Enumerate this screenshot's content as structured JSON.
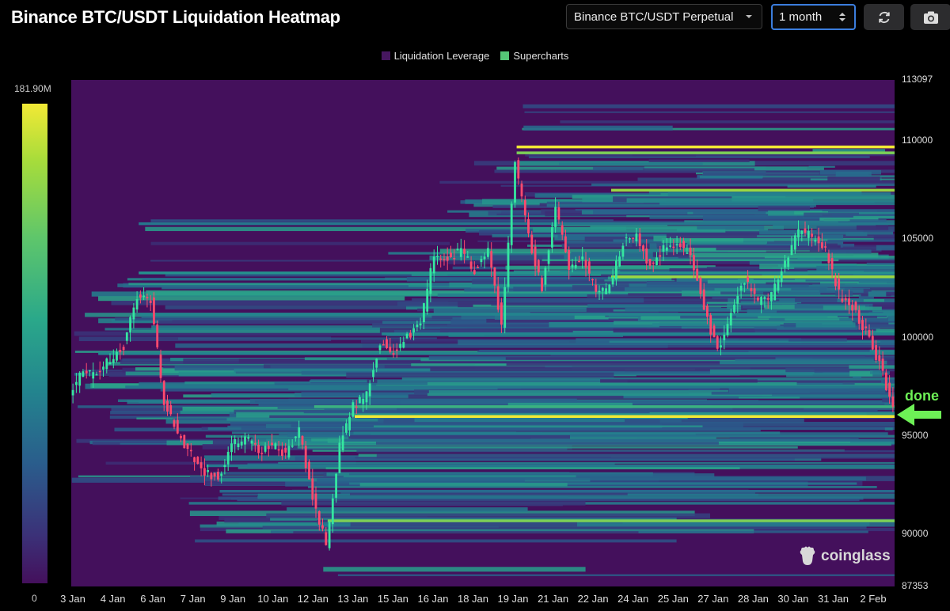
{
  "header": {
    "title": "Binance BTC/USDT Liquidation Heatmap",
    "pair_select": "Binance BTC/USDT Perpetual",
    "range_select": "1 month",
    "refresh_icon": "refresh-icon",
    "camera_icon": "camera-icon"
  },
  "legend": [
    {
      "label": "Liquidation Leverage",
      "color": "#46175f"
    },
    {
      "label": "Supercharts",
      "color": "#55c777"
    }
  ],
  "colorbar": {
    "max_label": "181.90M",
    "min_label": "0"
  },
  "annotation": {
    "text": "done",
    "color": "#6df056"
  },
  "watermark": {
    "text": "coinglass"
  },
  "chart_data": {
    "type": "heatmap",
    "title": "Binance BTC/USDT Liquidation Heatmap",
    "ylim": [
      87353,
      113097
    ],
    "yticks": [
      "113097",
      "110000",
      "105000",
      "100000",
      "95000",
      "90000",
      "87353"
    ],
    "xticks": [
      "3 Jan",
      "4 Jan",
      "6 Jan",
      "7 Jan",
      "9 Jan",
      "10 Jan",
      "12 Jan",
      "13 Jan",
      "15 Jan",
      "16 Jan",
      "18 Jan",
      "19 Jan",
      "21 Jan",
      "22 Jan",
      "24 Jan",
      "25 Jan",
      "27 Jan",
      "28 Jan",
      "30 Jan",
      "31 Jan",
      "2 Feb"
    ],
    "price_path": [
      {
        "day": 0,
        "price": 97300
      },
      {
        "day": 1,
        "price": 98200
      },
      {
        "day": 2,
        "price": 98100
      },
      {
        "day": 3,
        "price": 98900
      },
      {
        "day": 4,
        "price": 99600
      },
      {
        "day": 5,
        "price": 102100
      },
      {
        "day": 6,
        "price": 101800
      },
      {
        "day": 7,
        "price": 96800
      },
      {
        "day": 8,
        "price": 95200
      },
      {
        "day": 9,
        "price": 94000
      },
      {
        "day": 10,
        "price": 93100
      },
      {
        "day": 11,
        "price": 92900
      },
      {
        "day": 12,
        "price": 94500
      },
      {
        "day": 13,
        "price": 94900
      },
      {
        "day": 14,
        "price": 94300
      },
      {
        "day": 15,
        "price": 94500
      },
      {
        "day": 16,
        "price": 94100
      },
      {
        "day": 17,
        "price": 95200
      },
      {
        "day": 18,
        "price": 92000
      },
      {
        "day": 19,
        "price": 89400
      },
      {
        "day": 20,
        "price": 94500
      },
      {
        "day": 21,
        "price": 96500
      },
      {
        "day": 22,
        "price": 97100
      },
      {
        "day": 23,
        "price": 99800
      },
      {
        "day": 24,
        "price": 99300
      },
      {
        "day": 25,
        "price": 100100
      },
      {
        "day": 26,
        "price": 100600
      },
      {
        "day": 27,
        "price": 104300
      },
      {
        "day": 28,
        "price": 104100
      },
      {
        "day": 29,
        "price": 104400
      },
      {
        "day": 30,
        "price": 103400
      },
      {
        "day": 31,
        "price": 104500
      },
      {
        "day": 32,
        "price": 100700
      },
      {
        "day": 33,
        "price": 108900
      },
      {
        "day": 34,
        "price": 105200
      },
      {
        "day": 35,
        "price": 102500
      },
      {
        "day": 36,
        "price": 106500
      },
      {
        "day": 37,
        "price": 103600
      },
      {
        "day": 38,
        "price": 104100
      },
      {
        "day": 39,
        "price": 102300
      },
      {
        "day": 40,
        "price": 102600
      },
      {
        "day": 41,
        "price": 104900
      },
      {
        "day": 42,
        "price": 105200
      },
      {
        "day": 43,
        "price": 103600
      },
      {
        "day": 44,
        "price": 104500
      },
      {
        "day": 45,
        "price": 104800
      },
      {
        "day": 46,
        "price": 104300
      },
      {
        "day": 47,
        "price": 101500
      },
      {
        "day": 48,
        "price": 99300
      },
      {
        "day": 49,
        "price": 101300
      },
      {
        "day": 50,
        "price": 103000
      },
      {
        "day": 51,
        "price": 101900
      },
      {
        "day": 52,
        "price": 102100
      },
      {
        "day": 53,
        "price": 103800
      },
      {
        "day": 54,
        "price": 105400
      },
      {
        "day": 55,
        "price": 105100
      },
      {
        "day": 56,
        "price": 104400
      },
      {
        "day": 57,
        "price": 102200
      },
      {
        "day": 58,
        "price": 101600
      },
      {
        "day": 59,
        "price": 100300
      },
      {
        "day": 60,
        "price": 98700
      },
      {
        "day": 61,
        "price": 96300
      }
    ],
    "liquidation_levels": [
      {
        "price": 109700,
        "start_day": 33,
        "intensity": 1.0
      },
      {
        "price": 109400,
        "start_day": 33,
        "intensity": 0.85
      },
      {
        "price": 107500,
        "start_day": 40,
        "intensity": 0.9
      },
      {
        "price": 103100,
        "start_day": 40,
        "intensity": 0.9
      },
      {
        "price": 96000,
        "start_day": 21,
        "intensity": 1.0
      },
      {
        "price": 96500,
        "start_day": 18,
        "intensity": 0.7
      },
      {
        "price": 90700,
        "start_day": 19,
        "intensity": 0.85
      },
      {
        "price": 105800,
        "start_day": 5,
        "intensity": 0.45
      },
      {
        "price": 103300,
        "start_day": 5,
        "intensity": 0.55
      },
      {
        "price": 101200,
        "start_day": 5,
        "intensity": 0.5
      },
      {
        "price": 99200,
        "start_day": 2,
        "intensity": 0.5
      },
      {
        "price": 97500,
        "start_day": 4,
        "intensity": 0.45
      },
      {
        "price": 93500,
        "start_day": 10,
        "intensity": 0.45
      },
      {
        "price": 92200,
        "start_day": 11,
        "intensity": 0.4
      },
      {
        "price": 100200,
        "start_day": 23,
        "intensity": 0.5
      },
      {
        "price": 94800,
        "start_day": 20,
        "intensity": 0.4
      }
    ]
  }
}
